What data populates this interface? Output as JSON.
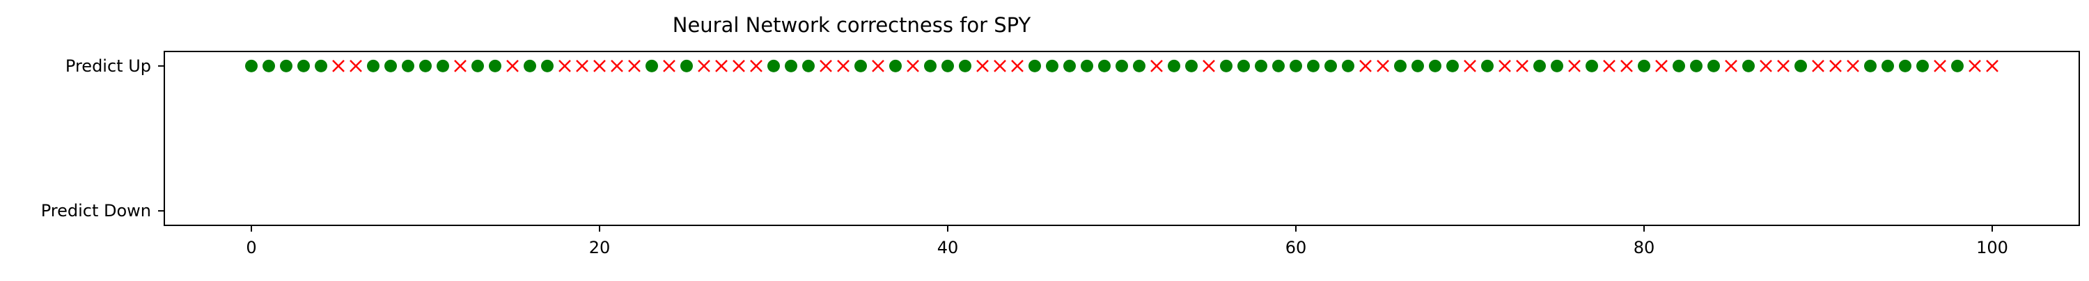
{
  "chart_data": {
    "type": "scatter",
    "title": "Neural Network correctness for SPY",
    "xlabel": "",
    "ylabel": "",
    "xlim": [
      -5,
      105
    ],
    "ylim": [
      -0.1,
      1.1
    ],
    "x_ticks": [
      0,
      20,
      40,
      60,
      80,
      100
    ],
    "y_ticks": [
      {
        "value": 1,
        "label": "Predict Up"
      },
      {
        "value": 0,
        "label": "Predict Down"
      }
    ],
    "grid": false,
    "legend": "none",
    "series": [
      {
        "marker": "circle",
        "color": "#008000",
        "x": [
          0,
          1,
          2,
          3,
          4,
          7,
          8,
          9,
          10,
          11,
          13,
          14,
          16,
          17,
          23,
          25,
          30,
          31,
          32,
          35,
          37,
          39,
          40,
          41,
          45,
          46,
          47,
          48,
          49,
          50,
          51,
          53,
          54,
          56,
          57,
          58,
          59,
          60,
          61,
          62,
          63,
          66,
          67,
          68,
          69,
          71,
          74,
          75,
          77,
          80,
          82,
          83,
          84,
          86,
          89,
          93,
          94,
          95,
          96,
          98
        ],
        "y": 1
      },
      {
        "marker": "x",
        "color": "#ff0000",
        "x": [
          5,
          6,
          12,
          15,
          18,
          19,
          20,
          21,
          22,
          24,
          26,
          27,
          28,
          29,
          33,
          34,
          36,
          38,
          42,
          43,
          44,
          52,
          55,
          64,
          65,
          70,
          72,
          73,
          76,
          78,
          79,
          81,
          85,
          87,
          88,
          90,
          91,
          92,
          97,
          99,
          100
        ],
        "y": 1
      }
    ]
  }
}
